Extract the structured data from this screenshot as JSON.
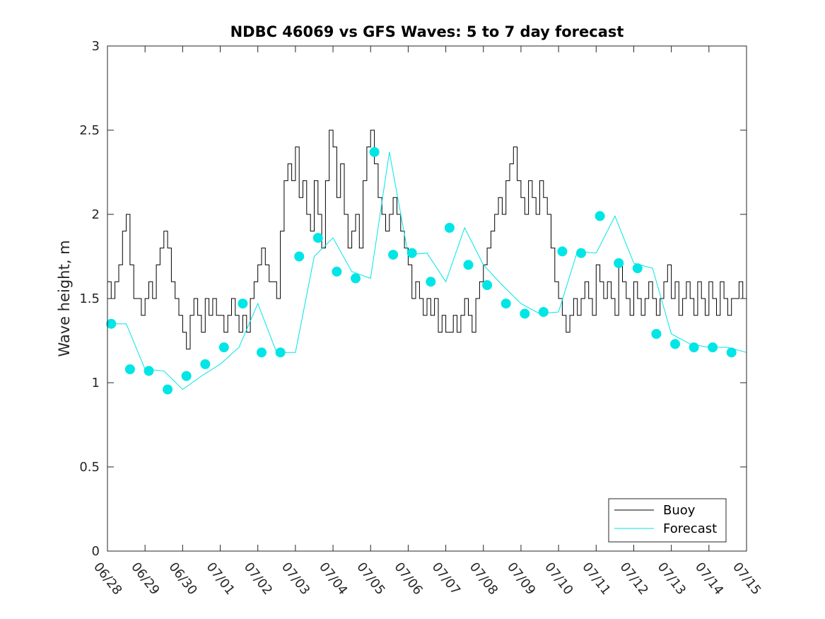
{
  "chart_data": {
    "type": "line",
    "title": "NDBC 46069 vs GFS Waves: 5 to 7 day forecast",
    "xlabel": "",
    "ylabel": "Wave height, m",
    "ylim": [
      0,
      3
    ],
    "xlim_days": [
      0,
      17
    ],
    "yticks": [
      "0",
      "0.5",
      "1",
      "1.5",
      "2",
      "2.5",
      "3"
    ],
    "xticks": [
      "06/28",
      "06/29",
      "06/30",
      "07/01",
      "07/02",
      "07/03",
      "07/04",
      "07/05",
      "07/06",
      "07/07",
      "07/08",
      "07/09",
      "07/10",
      "07/11",
      "07/12",
      "07/13",
      "07/14",
      "07/15"
    ],
    "grid": false,
    "legend": {
      "position": "bottom-right",
      "entries": [
        "Buoy",
        "Forecast"
      ]
    },
    "colors": {
      "buoy": "#000000",
      "forecast": "#00e5e5",
      "axis": "#262626"
    },
    "series": [
      {
        "name": "Buoy",
        "x": [
          0.0,
          0.1,
          0.2,
          0.3,
          0.4,
          0.5,
          0.6,
          0.7,
          0.8,
          0.9,
          1.0,
          1.1,
          1.2,
          1.3,
          1.4,
          1.5,
          1.6,
          1.7,
          1.8,
          1.9,
          2.0,
          2.1,
          2.2,
          2.3,
          2.4,
          2.5,
          2.6,
          2.7,
          2.8,
          2.9,
          3.0,
          3.1,
          3.2,
          3.3,
          3.4,
          3.5,
          3.6,
          3.7,
          3.8,
          3.9,
          4.0,
          4.1,
          4.2,
          4.3,
          4.4,
          4.5,
          4.6,
          4.7,
          4.8,
          4.9,
          5.0,
          5.1,
          5.2,
          5.3,
          5.4,
          5.5,
          5.6,
          5.7,
          5.8,
          5.9,
          6.0,
          6.1,
          6.2,
          6.3,
          6.4,
          6.5,
          6.6,
          6.7,
          6.8,
          6.9,
          7.0,
          7.1,
          7.2,
          7.3,
          7.4,
          7.5,
          7.6,
          7.7,
          7.8,
          7.9,
          8.0,
          8.1,
          8.2,
          8.3,
          8.4,
          8.5,
          8.6,
          8.7,
          8.8,
          8.9,
          9.0,
          9.1,
          9.2,
          9.3,
          9.4,
          9.5,
          9.6,
          9.7,
          9.8,
          9.9,
          10.0,
          10.1,
          10.2,
          10.3,
          10.4,
          10.5,
          10.6,
          10.7,
          10.8,
          10.9,
          11.0,
          11.1,
          11.2,
          11.3,
          11.4,
          11.5,
          11.6,
          11.7,
          11.8,
          11.9,
          12.0,
          12.1,
          12.2,
          12.3,
          12.4,
          12.5,
          12.6,
          12.7,
          12.8,
          12.9,
          13.0,
          13.1,
          13.2,
          13.3,
          13.4,
          13.5,
          13.6,
          13.7,
          13.8,
          13.9,
          14.0,
          14.1,
          14.2,
          14.3,
          14.4,
          14.5,
          14.6,
          14.7,
          14.8,
          14.9,
          15.0,
          15.1,
          15.2,
          15.3,
          15.4,
          15.5,
          15.6,
          15.7,
          15.8,
          15.9,
          16.0,
          16.1,
          16.2,
          16.3,
          16.4,
          16.5,
          16.6,
          16.7,
          16.8,
          16.9,
          17.0
        ],
        "values": [
          1.6,
          1.5,
          1.6,
          1.7,
          1.9,
          2.0,
          1.7,
          1.5,
          1.5,
          1.4,
          1.5,
          1.6,
          1.5,
          1.7,
          1.8,
          1.9,
          1.8,
          1.6,
          1.5,
          1.4,
          1.3,
          1.2,
          1.4,
          1.5,
          1.4,
          1.3,
          1.5,
          1.4,
          1.5,
          1.4,
          1.4,
          1.3,
          1.4,
          1.5,
          1.4,
          1.3,
          1.4,
          1.3,
          1.5,
          1.6,
          1.7,
          1.8,
          1.7,
          1.6,
          1.6,
          1.5,
          1.9,
          2.2,
          2.3,
          2.2,
          2.4,
          2.1,
          2.2,
          2.0,
          1.9,
          2.2,
          2.0,
          1.8,
          2.2,
          2.5,
          2.4,
          2.1,
          2.3,
          2.0,
          1.8,
          1.9,
          2.0,
          1.8,
          2.2,
          2.4,
          2.5,
          2.3,
          2.1,
          2.0,
          1.9,
          2.0,
          2.1,
          2.0,
          1.9,
          1.8,
          1.7,
          1.5,
          1.6,
          1.5,
          1.4,
          1.5,
          1.4,
          1.5,
          1.3,
          1.4,
          1.3,
          1.3,
          1.4,
          1.3,
          1.4,
          1.5,
          1.4,
          1.3,
          1.5,
          1.6,
          1.7,
          1.8,
          1.9,
          2.0,
          2.1,
          2.0,
          2.2,
          2.3,
          2.4,
          2.2,
          2.1,
          2.0,
          2.2,
          2.1,
          2.0,
          2.2,
          2.1,
          2.0,
          1.8,
          1.6,
          1.5,
          1.4,
          1.3,
          1.4,
          1.5,
          1.4,
          1.5,
          1.6,
          1.5,
          1.4,
          1.7,
          1.6,
          1.5,
          1.6,
          1.5,
          1.4,
          1.7,
          1.6,
          1.5,
          1.4,
          1.6,
          1.5,
          1.4,
          1.5,
          1.6,
          1.5,
          1.4,
          1.5,
          1.6,
          1.7,
          1.5,
          1.6,
          1.4,
          1.5,
          1.6,
          1.5,
          1.4,
          1.6,
          1.5,
          1.4,
          1.6,
          1.5,
          1.4,
          1.6,
          1.5,
          1.4,
          1.5,
          1.5,
          1.6,
          1.5,
          1.5
        ]
      },
      {
        "name": "Forecast",
        "x": [
          0.0,
          0.5,
          1.0,
          1.5,
          2.0,
          2.5,
          3.0,
          3.5,
          4.0,
          4.5,
          5.0,
          5.5,
          6.0,
          6.5,
          7.0,
          7.5,
          8.0,
          8.5,
          9.0,
          9.5,
          10.0,
          10.5,
          11.0,
          11.5,
          12.0,
          12.5,
          13.0,
          13.5,
          14.0,
          14.5,
          15.0,
          15.5,
          16.0,
          16.5,
          17.0
        ],
        "values": [
          1.35,
          1.35,
          1.08,
          1.07,
          0.96,
          1.04,
          1.11,
          1.21,
          1.47,
          1.18,
          1.18,
          1.75,
          1.86,
          1.66,
          1.62,
          2.37,
          1.76,
          1.77,
          1.6,
          1.92,
          1.7,
          1.58,
          1.47,
          1.41,
          1.42,
          1.78,
          1.77,
          1.99,
          1.71,
          1.68,
          1.29,
          1.23,
          1.21,
          1.21,
          1.18
        ]
      }
    ],
    "markers": {
      "name": "Forecast",
      "x": [
        0.1,
        0.6,
        1.1,
        1.6,
        2.1,
        2.6,
        3.1,
        3.6,
        4.1,
        4.6,
        5.1,
        5.6,
        6.1,
        6.6,
        7.1,
        7.6,
        8.1,
        8.6,
        9.1,
        9.6,
        10.1,
        10.6,
        11.1,
        11.6,
        12.1,
        12.6,
        13.1,
        13.6,
        14.1,
        14.6,
        15.1,
        15.6,
        16.1,
        16.6
      ],
      "values": [
        1.35,
        1.08,
        1.07,
        0.96,
        1.04,
        1.11,
        1.21,
        1.47,
        1.18,
        1.18,
        1.75,
        1.86,
        1.66,
        1.62,
        2.37,
        1.76,
        1.77,
        1.6,
        1.92,
        1.7,
        1.58,
        1.47,
        1.41,
        1.42,
        1.78,
        1.77,
        1.99,
        1.71,
        1.68,
        1.29,
        1.23,
        1.21,
        1.21,
        1.18
      ]
    }
  }
}
